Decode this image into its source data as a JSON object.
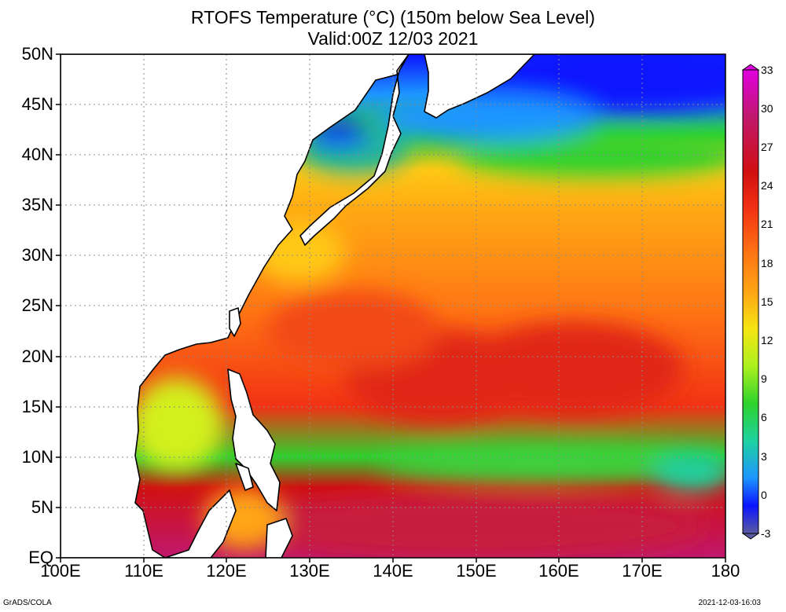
{
  "title": {
    "line1": "RTOFS Temperature (°C) (150m below Sea Level)",
    "line2": "Valid:00Z 12/03 2021"
  },
  "axes": {
    "lat_labels": [
      "50N",
      "45N",
      "40N",
      "35N",
      "30N",
      "25N",
      "20N",
      "15N",
      "10N",
      "5N",
      "EQ"
    ],
    "lon_labels": [
      "100E",
      "110E",
      "120E",
      "130E",
      "140E",
      "150E",
      "160E",
      "170E",
      "180"
    ]
  },
  "colorbar": {
    "labels": [
      "33",
      "30",
      "27",
      "24",
      "21",
      "18",
      "15",
      "12",
      "9",
      "6",
      "3",
      "0",
      "-3"
    ],
    "colors": [
      "#e000e0",
      "#c0186e",
      "#d01010",
      "#f23214",
      "#ff7814",
      "#ffa514",
      "#f5e614",
      "#aaf01e",
      "#2dd22d",
      "#1ed2a0",
      "#1e96ff",
      "#0a14ff",
      "#5a5aa0"
    ]
  },
  "footer": {
    "credit": "GrADS/COLA",
    "timestamp": "2021-12-03-16:03"
  }
}
